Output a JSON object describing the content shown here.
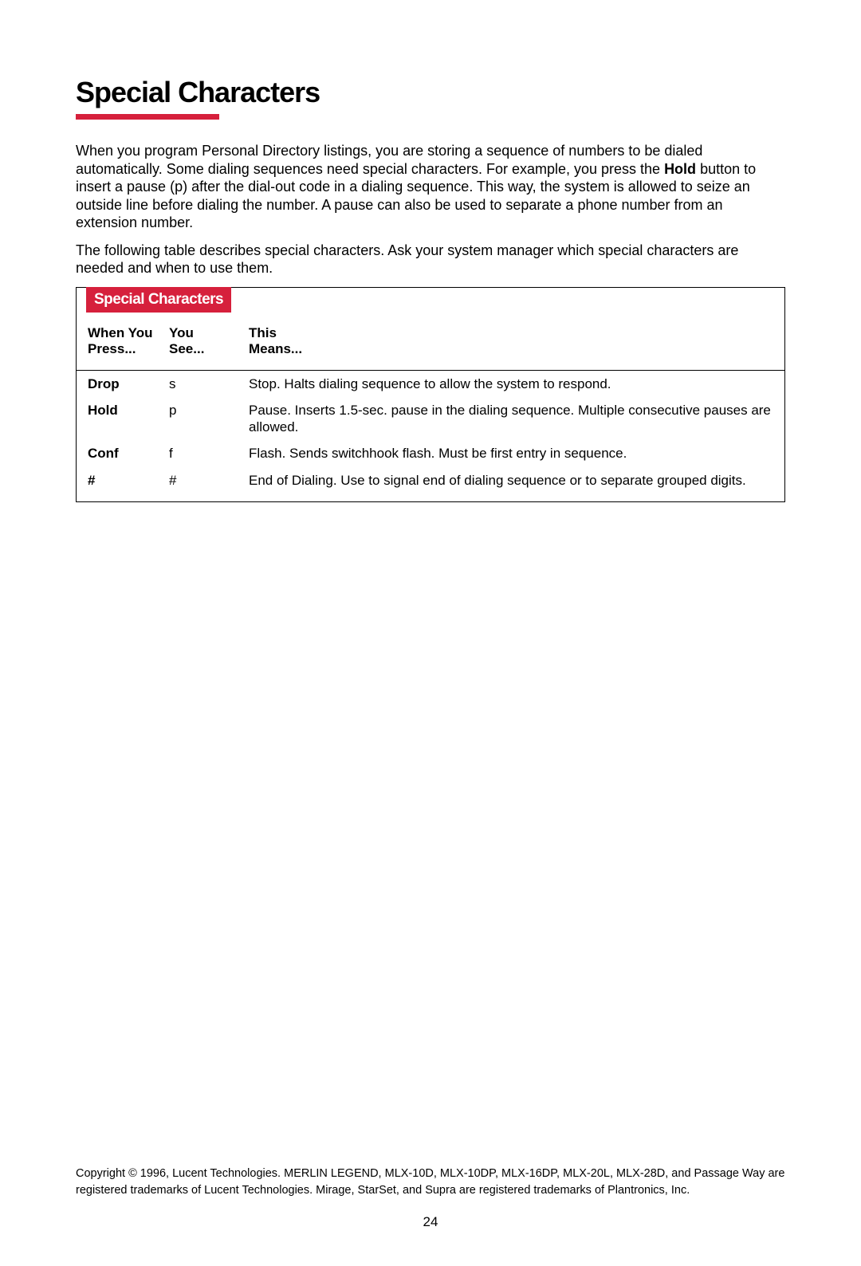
{
  "title": "Special Characters",
  "colors": {
    "accent": "#d6203c",
    "text": "#000000",
    "bg": "#ffffff"
  },
  "paragraphs": {
    "p1_a": "When you program Personal Directory listings, you are storing a sequence of numbers to be dialed automatically. Some dialing sequences need special characters. For example, you press the ",
    "p1_bold": "Hold",
    "p1_b": " button to insert a pause (p) after the dial-out code in a dialing sequence. This way, the system is allowed to seize an outside line before dialing the number. A pause can also be used to separate a phone number from an extension number.",
    "p2": "The following table describes special characters. Ask your system manager which special characters are needed and when to use them."
  },
  "table": {
    "tab_title": "Special Characters",
    "headers": {
      "col1_l1": "When You",
      "col1_l2": "Press...",
      "col2_l1": "You",
      "col2_l2": "See...",
      "col3_l1": "This",
      "col3_l2": "Means..."
    },
    "rows": [
      {
        "press": "Drop",
        "see": "s",
        "means": "Stop. Halts dialing sequence to allow the system to respond."
      },
      {
        "press": "Hold",
        "see": "p",
        "means": "Pause. Inserts 1.5-sec. pause in the dialing sequence. Multiple consecutive pauses are allowed."
      },
      {
        "press": "Conf",
        "see": "f",
        "means": "Flash. Sends switchhook flash. Must be first entry in sequence."
      },
      {
        "press": "#",
        "see": "#",
        "means": "End of Dialing. Use to signal end of dialing sequence or to separate grouped digits."
      }
    ]
  },
  "footer": "Copyright © 1996, Lucent Technologies. MERLIN LEGEND,  MLX-10D, MLX-10DP, MLX-16DP, MLX-20L, MLX-28D, and Passage Way are registered trademarks of Lucent Technologies.  Mirage, StarSet, and Supra are registered trademarks of Plantronics, Inc.",
  "page_number": "24"
}
